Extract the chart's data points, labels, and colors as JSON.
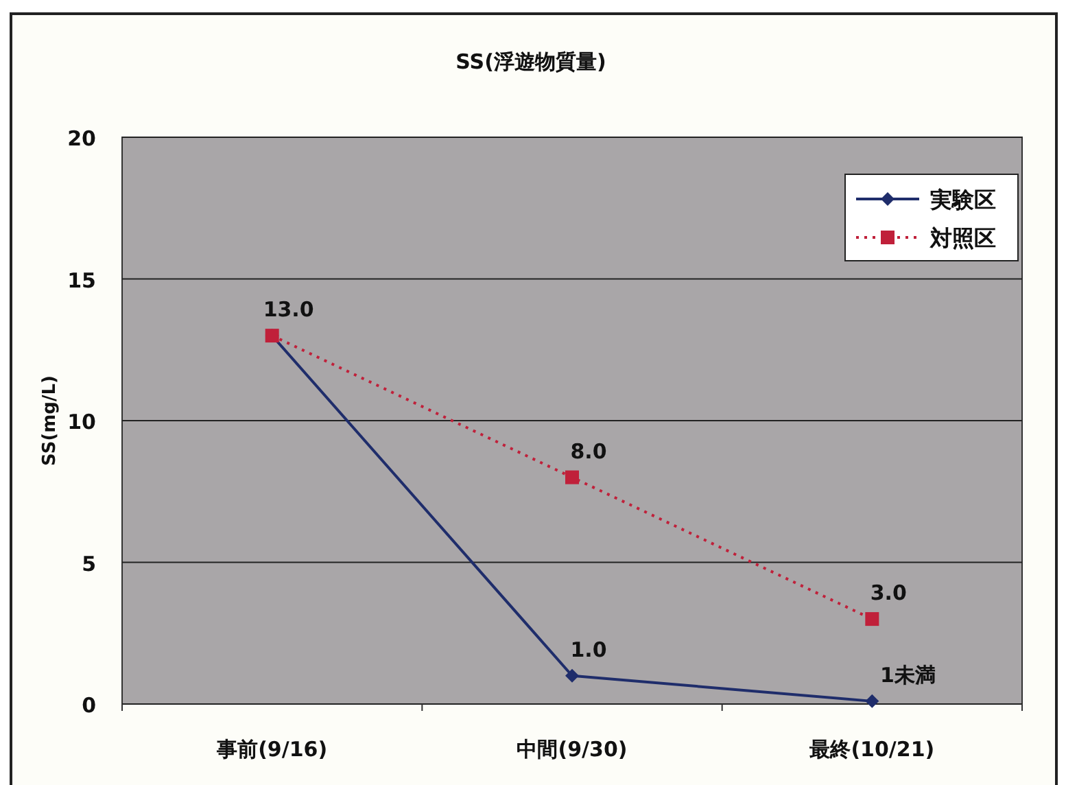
{
  "chart_data": {
    "type": "line",
    "title": "SS(浮遊物質量)",
    "ylabel": "SS(mg/L)",
    "categories": [
      "事前(9/16)",
      "中間(9/30)",
      "最終(10/21)"
    ],
    "series": [
      {
        "name": "実験区",
        "color": "#1f2d6b",
        "values": [
          13.0,
          1.0,
          0.1
        ],
        "marker": "diamond",
        "line_style": "solid",
        "value_labels": [
          null,
          "1.0",
          null
        ]
      },
      {
        "name": "対照区",
        "color": "#c0203a",
        "values": [
          13.0,
          8.0,
          3.0
        ],
        "marker": "square",
        "line_style": "dotted",
        "value_labels": [
          "13.0",
          "8.0",
          "3.0"
        ]
      }
    ],
    "annotations": [
      {
        "text": "1未満",
        "x": "最終(10/21)",
        "y": 0.1
      }
    ],
    "ylim": [
      0,
      20
    ],
    "yticks": [
      0,
      5,
      10,
      15,
      20
    ],
    "grid": "y",
    "legend": "top right"
  }
}
